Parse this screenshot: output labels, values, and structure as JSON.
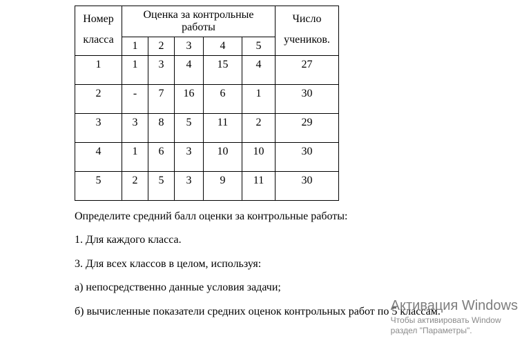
{
  "table": {
    "header": {
      "class_col": "Номер класса",
      "grades_span": "Оценка за контрольные работы",
      "count_col": "Число учеников.",
      "grade_labels": [
        "1",
        "2",
        "3",
        "4",
        "5"
      ]
    },
    "rows": [
      {
        "class": "1",
        "g": [
          "1",
          "3",
          "4",
          "15",
          "4"
        ],
        "count": "27"
      },
      {
        "class": "2",
        "g": [
          "-",
          "7",
          "16",
          "6",
          "1"
        ],
        "count": "30"
      },
      {
        "class": "3",
        "g": [
          "3",
          "8",
          "5",
          "11",
          "2"
        ],
        "count": "29"
      },
      {
        "class": "4",
        "g": [
          "1",
          "6",
          "3",
          "10",
          "10"
        ],
        "count": "30"
      },
      {
        "class": "5",
        "g": [
          "2",
          "5",
          "3",
          "9",
          "11"
        ],
        "count": "30"
      }
    ]
  },
  "text": {
    "p1": "Определите средний балл оценки за контрольные работы:",
    "p2": "1. Для каждого класса.",
    "p3": "3. Для всех классов в целом, используя:",
    "p4": "а) непосредственно данные условия задачи;",
    "p5": "б) вычисленные показатели средних оценок контрольных работ по 5 классам."
  },
  "watermark": {
    "title": "Активация Windows",
    "sub1": "Чтобы активировать Window",
    "sub2": "раздел \"Параметры\"."
  }
}
